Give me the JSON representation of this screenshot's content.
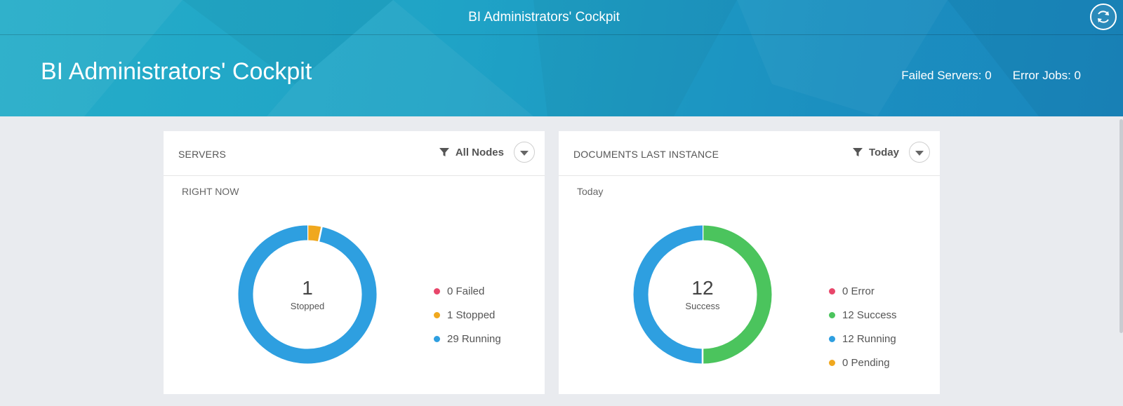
{
  "shell": {
    "title": "BI Administrators' Cockpit"
  },
  "page": {
    "title": "BI Administrators' Cockpit",
    "failed_servers": "Failed Servers: 0",
    "error_jobs": "Error Jobs: 0"
  },
  "icons": {
    "refresh": "refresh-icon",
    "filter": "filter-icon",
    "dropdown": "chevron-down-icon"
  },
  "colors": {
    "header": "#1fa3c6",
    "failed": "#e8466a",
    "stopped": "#f0a81e",
    "running": "#2e9fe0",
    "success": "#4bc45d",
    "pending": "#f0a81e"
  },
  "servers_card": {
    "title": "SERVERS",
    "filter_label": "All Nodes",
    "subtitle": "RIGHT NOW",
    "center_value": "1",
    "center_label": "Stopped",
    "legend": [
      {
        "label": "0 Failed",
        "color": "#e8466a"
      },
      {
        "label": "1 Stopped",
        "color": "#f0a81e"
      },
      {
        "label": "29 Running",
        "color": "#2e9fe0"
      }
    ]
  },
  "docs_card": {
    "title": "DOCUMENTS LAST INSTANCE",
    "filter_label": "Today",
    "subtitle": "Today",
    "center_value": "12",
    "center_label": "Success",
    "legend": [
      {
        "label": "0 Error",
        "color": "#e8466a"
      },
      {
        "label": "12 Success",
        "color": "#4bc45d"
      },
      {
        "label": "12 Running",
        "color": "#2e9fe0"
      },
      {
        "label": "0 Pending",
        "color": "#f0a81e"
      }
    ]
  },
  "chart_data": [
    {
      "type": "pie",
      "categories": [
        "Failed",
        "Stopped",
        "Running"
      ],
      "values": [
        0,
        1,
        29
      ],
      "colors": [
        "#e8466a",
        "#f0a81e",
        "#2e9fe0"
      ]
    },
    {
      "type": "pie",
      "categories": [
        "Error",
        "Success",
        "Running",
        "Pending"
      ],
      "values": [
        0,
        12,
        12,
        0
      ],
      "colors": [
        "#e8466a",
        "#4bc45d",
        "#2e9fe0",
        "#f0a81e"
      ]
    }
  ]
}
